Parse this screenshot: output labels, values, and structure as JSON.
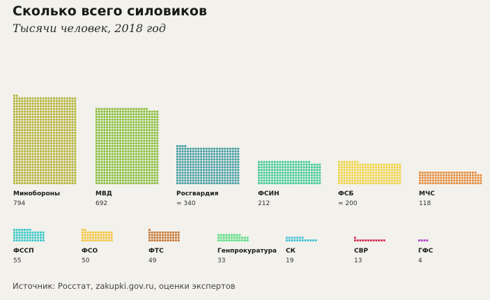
{
  "header": {
    "title": "Сколько всего силовиков",
    "subtitle": "Тысячи человек, 2018 год"
  },
  "source": "Источник: Росстат, zakupki.gov.ru, оценки экспертов",
  "chart_data": {
    "type": "waffle",
    "title": "Сколько всего силовиков",
    "subtitle": "Тысячи человек, 2018 год",
    "categories": [
      "Минобороны",
      "МВД",
      "Росгвардия",
      "ФСИН",
      "ФСБ",
      "МЧС",
      "ФССП",
      "ФСО",
      "ФТС",
      "Генпрокуратура",
      "СК",
      "СВР",
      "ГФС"
    ],
    "value_labels": [
      "794",
      "692",
      "≈ 340",
      "212",
      "≈ 200",
      "118",
      "55",
      "50",
      "49",
      "33",
      "19",
      "13",
      "4"
    ],
    "values": [
      794,
      692,
      340,
      212,
      200,
      118,
      55,
      50,
      49,
      33,
      19,
      13,
      4
    ],
    "colors": [
      "#b2b134",
      "#86bb35",
      "#3e9aa0",
      "#3dcb92",
      "#f0d33c",
      "#e48836",
      "#35c6c7",
      "#f5c233",
      "#c47330",
      "#57dc7e",
      "#3ec1d8",
      "#d7264c",
      "#b03ec9"
    ],
    "unit": "тыс. человек"
  }
}
